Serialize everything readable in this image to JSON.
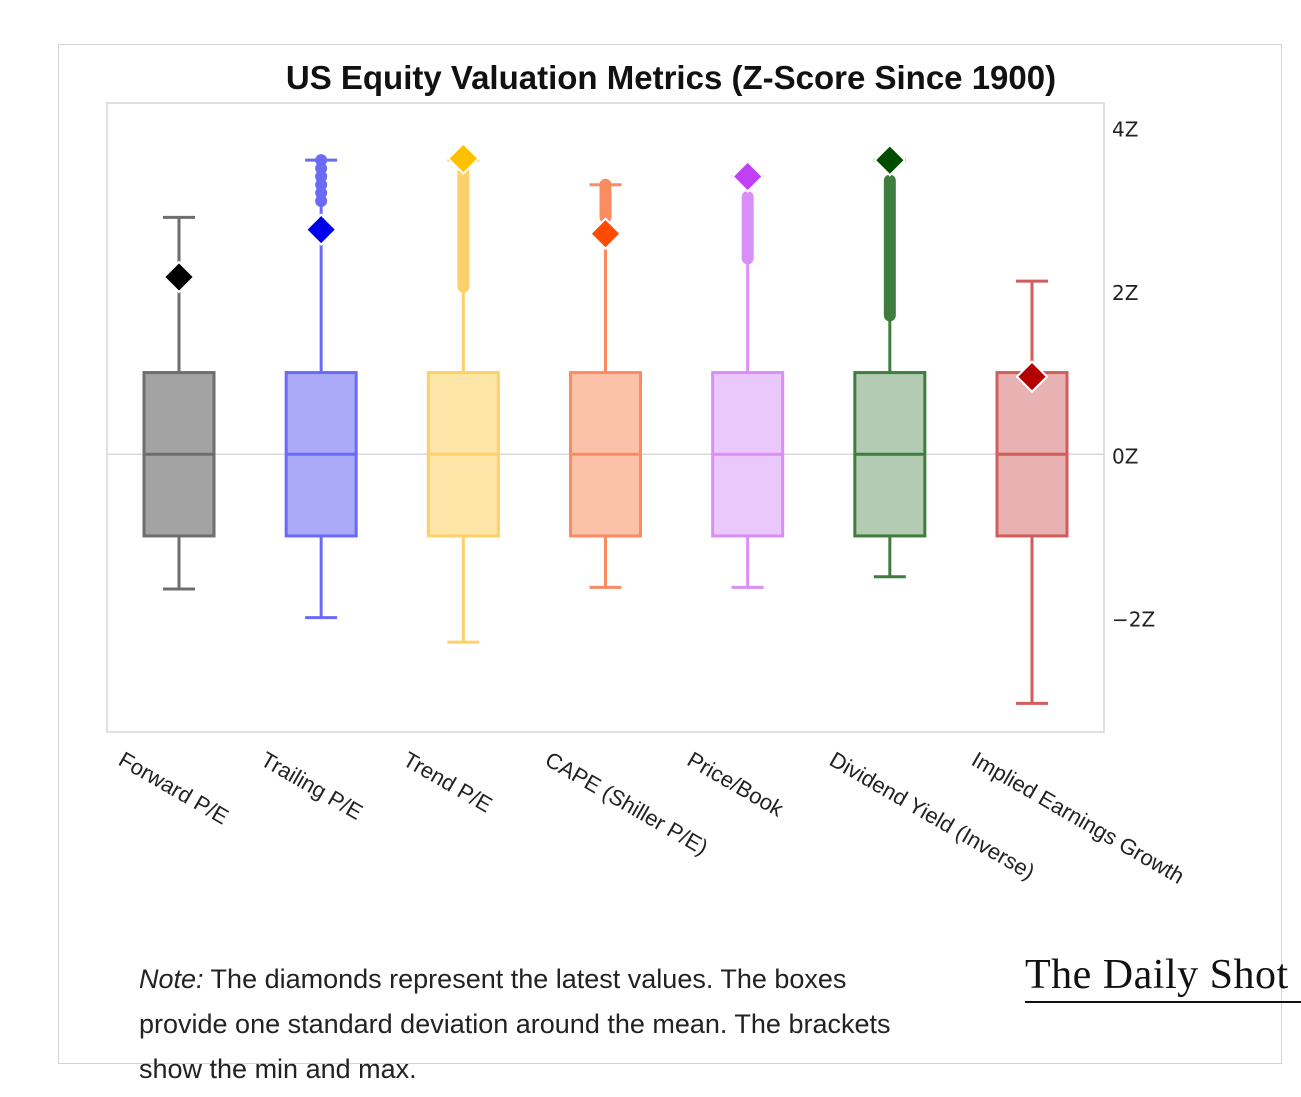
{
  "chart_data": {
    "type": "box",
    "title": "US Equity Valuation Metrics (Z-Score Since 1900)",
    "y_axis": {
      "position": "right",
      "ylim": [
        -3.4,
        4.3
      ],
      "ticks": [
        -2,
        0,
        2,
        4
      ],
      "tick_labels": [
        "−2Z",
        "0Z",
        "2Z",
        "4Z"
      ]
    },
    "grid": false,
    "reference_line": 0,
    "series": [
      {
        "name": "Forward P/E",
        "color": "#6e6e6e",
        "fill": "#a3a3a3",
        "min": -1.65,
        "q1": -1,
        "median": 0,
        "q3": 1,
        "max": 2.9,
        "latest": 2.17,
        "latest_color": "#000000",
        "outliers_from": null,
        "outliers_to": null
      },
      {
        "name": "Trailing P/E",
        "color": "#6a6af7",
        "fill": "#aaaaf8",
        "min": -2.0,
        "q1": -1,
        "median": 0,
        "q3": 1,
        "max": 3.6,
        "latest": 2.75,
        "latest_color": "#0000ee",
        "outliers_from": 3.1,
        "outliers_to": 3.6,
        "outlier_style": "dots"
      },
      {
        "name": "Trend P/E",
        "color": "#fdd06a",
        "fill": "#ffe6a8",
        "min": -2.3,
        "q1": -1,
        "median": 0,
        "q3": 1,
        "max": 3.6,
        "latest": 3.62,
        "latest_color": "#ffc000",
        "outliers_from": 2.05,
        "outliers_to": 3.45,
        "outlier_style": "band"
      },
      {
        "name": "CAPE (Shiller P/E)",
        "color": "#fb8c62",
        "fill": "#fcc1a9",
        "min": -1.63,
        "q1": -1,
        "median": 0,
        "q3": 1,
        "max": 3.3,
        "latest": 2.7,
        "latest_color": "#ff4a00",
        "outliers_from": 2.9,
        "outliers_to": 3.3,
        "outlier_style": "band"
      },
      {
        "name": "Price/Book",
        "color": "#d98ef8",
        "fill": "#ebc8fc",
        "min": -1.63,
        "q1": -1,
        "median": 0,
        "q3": 1,
        "max": 3.4,
        "latest": 3.4,
        "latest_color": "#bf40f5",
        "outliers_from": 2.4,
        "outliers_to": 3.15,
        "outlier_style": "band"
      },
      {
        "name": "Dividend Yield (Inverse)",
        "color": "#3f7d3f",
        "fill": "#b2cbb2",
        "min": -1.5,
        "q1": -1,
        "median": 0,
        "q3": 1,
        "max": 3.6,
        "latest": 3.6,
        "latest_color": "#004d00",
        "outliers_from": 1.7,
        "outliers_to": 3.35,
        "outlier_style": "band"
      },
      {
        "name": "Implied Earnings Growth",
        "color": "#d25d5d",
        "fill": "#e9b2b2",
        "min": -3.05,
        "q1": -1,
        "median": 0,
        "q3": 1,
        "max": 2.12,
        "latest": 0.95,
        "latest_color": "#b30000",
        "outliers_from": null,
        "outliers_to": null
      }
    ]
  },
  "note": {
    "label": "Note:",
    "text": " The diamonds represent the latest values. The boxes provide one standard deviation around the mean. The brackets show the min and max."
  },
  "brand": {
    "name": "The Daily Shot",
    "mark": "®"
  }
}
